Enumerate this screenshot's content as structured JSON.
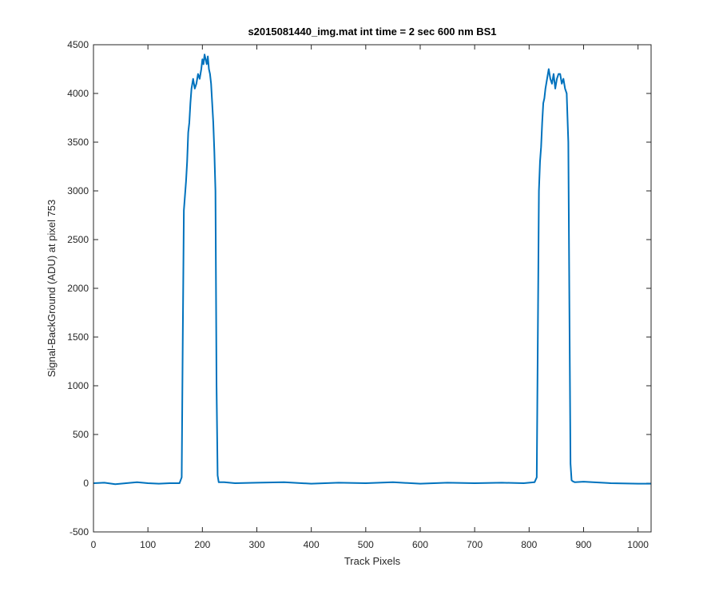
{
  "chart_data": {
    "type": "line",
    "title": "s2015081440_img.mat int time = 2 sec  600 nm BS1",
    "xlabel": "Track Pixels",
    "ylabel": "Signal-BackGround (ADU) at pixel 753",
    "xlim": [
      0,
      1024
    ],
    "ylim": [
      -500,
      4500
    ],
    "xticks": [
      0,
      100,
      200,
      300,
      400,
      500,
      600,
      700,
      800,
      900,
      1000
    ],
    "yticks": [
      -500,
      0,
      500,
      1000,
      1500,
      2000,
      2500,
      3000,
      3500,
      4000,
      4500
    ],
    "grid": false,
    "series": [
      {
        "color": "#0072BD",
        "x": [
          0,
          20,
          40,
          60,
          80,
          100,
          120,
          140,
          158,
          162,
          164,
          166,
          168,
          170,
          172,
          174,
          176,
          178,
          180,
          183,
          186,
          189,
          192,
          195,
          198,
          200,
          202,
          204,
          206,
          208,
          210,
          212,
          214,
          216,
          218,
          220,
          222,
          224,
          226,
          228,
          230,
          240,
          260,
          300,
          350,
          400,
          450,
          500,
          550,
          600,
          650,
          700,
          750,
          790,
          810,
          814,
          816,
          818,
          820,
          822,
          824,
          826,
          828,
          830,
          833,
          836,
          839,
          842,
          845,
          848,
          851,
          854,
          857,
          860,
          863,
          866,
          869,
          872,
          874,
          876,
          878,
          880,
          884,
          900,
          950,
          1000,
          1024
        ],
        "y": [
          0,
          5,
          -10,
          0,
          10,
          0,
          -5,
          0,
          0,
          60,
          1500,
          2800,
          2950,
          3100,
          3300,
          3600,
          3700,
          3900,
          4050,
          4150,
          4050,
          4100,
          4200,
          4150,
          4250,
          4350,
          4300,
          4400,
          4350,
          4300,
          4380,
          4250,
          4200,
          4100,
          3900,
          3700,
          3400,
          3000,
          1000,
          80,
          10,
          10,
          0,
          5,
          10,
          -5,
          5,
          0,
          10,
          -5,
          5,
          0,
          5,
          0,
          10,
          60,
          1500,
          3000,
          3300,
          3450,
          3700,
          3900,
          3950,
          4050,
          4150,
          4250,
          4150,
          4100,
          4200,
          4050,
          4150,
          4200,
          4200,
          4100,
          4150,
          4050,
          4000,
          3500,
          1800,
          200,
          30,
          20,
          10,
          15,
          0,
          -5,
          -5
        ]
      }
    ]
  }
}
